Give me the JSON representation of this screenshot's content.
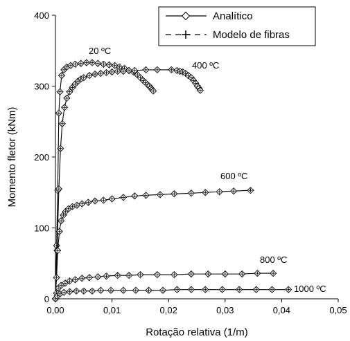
{
  "chart_data": {
    "type": "line",
    "xlabel": "Rotação relativa (1/m)",
    "ylabel": "Momento fletor (kNm)",
    "xlim": [
      0,
      0.05
    ],
    "ylim": [
      0,
      400
    ],
    "x_ticks": [
      "0,00",
      "0,01",
      "0,02",
      "0,03",
      "0,04",
      "0,05"
    ],
    "y_ticks": [
      "0",
      "100",
      "200",
      "300",
      "400"
    ],
    "legend": {
      "position": "top-right",
      "entries": [
        "Analítico",
        "Modelo de fibras"
      ]
    },
    "annotations": [
      "20 ºC",
      "400 ºC",
      "600 ºC",
      "800 ºC",
      "1000 ºC"
    ],
    "series": [
      {
        "name": "20 ºC",
        "x": [
          0,
          0.0002,
          0.0004,
          0.0006,
          0.0008,
          0.0011,
          0.0015,
          0.002,
          0.0027,
          0.0035,
          0.0045,
          0.0055,
          0.0065,
          0.0075,
          0.0085,
          0.0095,
          0.0105,
          0.0113,
          0.0122,
          0.013,
          0.0138,
          0.0145,
          0.015,
          0.0155,
          0.0159,
          0.0163,
          0.0166,
          0.0169,
          0.0171,
          0.0173
        ],
        "y": [
          0,
          75,
          153,
          262,
          292,
          315,
          323,
          327,
          329,
          331,
          332,
          333,
          333,
          332,
          331,
          330,
          329,
          327,
          325,
          322,
          320,
          316,
          312,
          308,
          305,
          302,
          300,
          297,
          295,
          293
        ]
      },
      {
        "name": "400 ºC",
        "x": [
          0,
          0.0003,
          0.0006,
          0.0009,
          0.0012,
          0.0016,
          0.002,
          0.0025,
          0.003,
          0.0035,
          0.004,
          0.0045,
          0.005,
          0.006,
          0.007,
          0.008,
          0.009,
          0.01,
          0.011,
          0.012,
          0.013,
          0.014,
          0.016,
          0.018,
          0.0205,
          0.0215,
          0.022,
          0.0225,
          0.023,
          0.0235,
          0.024,
          0.0244,
          0.0248,
          0.0251,
          0.0254,
          0.0256
        ],
        "y": [
          0,
          68,
          155,
          212,
          247,
          270,
          283,
          292,
          298,
          303,
          307,
          310,
          312,
          315,
          317,
          318,
          319,
          320,
          321,
          321,
          322,
          322,
          323,
          323,
          323,
          322,
          321,
          320,
          318,
          315,
          312,
          308,
          304,
          300,
          297,
          294
        ]
      },
      {
        "name": "600 ºC",
        "x": [
          0,
          0.0002,
          0.0004,
          0.0007,
          0.001,
          0.0014,
          0.0018,
          0.0023,
          0.003,
          0.0038,
          0.0047,
          0.0058,
          0.007,
          0.0085,
          0.01,
          0.012,
          0.014,
          0.016,
          0.0185,
          0.021,
          0.024,
          0.0265,
          0.029,
          0.0315,
          0.0345
        ],
        "y": [
          0,
          30,
          68,
          95,
          110,
          118,
          123,
          127,
          130,
          132,
          134,
          136,
          138,
          139,
          141,
          143,
          145,
          146,
          147,
          148,
          149,
          150,
          151,
          152,
          153
        ]
      },
      {
        "name": "800 ºC",
        "x": [
          0,
          0.0002,
          0.0005,
          0.001,
          0.0017,
          0.0025,
          0.0035,
          0.0047,
          0.006,
          0.0075,
          0.009,
          0.011,
          0.013,
          0.015,
          0.018,
          0.021,
          0.024,
          0.027,
          0.03,
          0.033,
          0.0357,
          0.0385
        ],
        "y": [
          0,
          8,
          15,
          19,
          22,
          25,
          27,
          29,
          30,
          31,
          32,
          33,
          33,
          34,
          34,
          34,
          35,
          35,
          35,
          35,
          36,
          36
        ]
      },
      {
        "name": "1000 ºC",
        "x": [
          0,
          0.0003,
          0.0008,
          0.0015,
          0.0025,
          0.0037,
          0.005,
          0.0065,
          0.008,
          0.0098,
          0.012,
          0.0142,
          0.0165,
          0.019,
          0.0215,
          0.024,
          0.0265,
          0.0295,
          0.0325,
          0.0355,
          0.0383,
          0.0412
        ],
        "y": [
          0,
          4,
          7,
          9,
          10,
          11,
          11,
          11,
          12,
          12,
          12,
          12,
          12,
          12,
          13,
          13,
          13,
          13,
          13,
          13,
          13,
          13
        ]
      }
    ]
  }
}
